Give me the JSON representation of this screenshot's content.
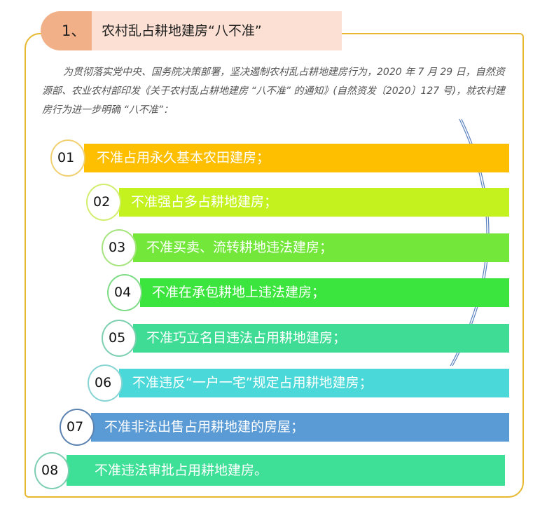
{
  "header": {
    "number": "1、",
    "title": "农村乱占耕地建房“八不准”"
  },
  "intro": "为贯彻落实党中央、国务院决策部署，坚决遏制农村乱占耕地建房行为，2020 年 7 月 29 日，自然资源部、农业农村部印发《关于农村乱占耕地建房 “八不准” 的通知》(自然资发〔2020〕127 号)，就农村建房行为进一步明确 “八不准”：",
  "items": [
    {
      "num": "01",
      "text": "不准占用永久基本农田建房；",
      "color": "#FDBF00",
      "border": "#F0D070"
    },
    {
      "num": "02",
      "text": "不准强占多占耕地建房；",
      "color": "#C4F21E",
      "border": "#D2EE70"
    },
    {
      "num": "03",
      "text": "不准买卖、流转耕地违法建房；",
      "color": "#74E83A",
      "border": "#A6E47E"
    },
    {
      "num": "04",
      "text": "不准在承包耕地上违法建房；",
      "color": "#3CE43E",
      "border": "#7EDC86"
    },
    {
      "num": "05",
      "text": "不准巧立名目违法占用耕地建房；",
      "color": "#3EDC94",
      "border": "#7CCFB0"
    },
    {
      "num": "06",
      "text": "不准违反“一户一宅”规定占用耕地建房；",
      "color": "#4AD8D8",
      "border": "#88D4D4"
    },
    {
      "num": "07",
      "text": "不准非法出售占用耕地建的房屋；",
      "color": "#5B9BD5",
      "border": "#5B82B0"
    },
    {
      "num": "08",
      "text": "不准违法审批占用耕地建房。",
      "color": "#3EDF96",
      "border": "#7ECFB2"
    }
  ]
}
